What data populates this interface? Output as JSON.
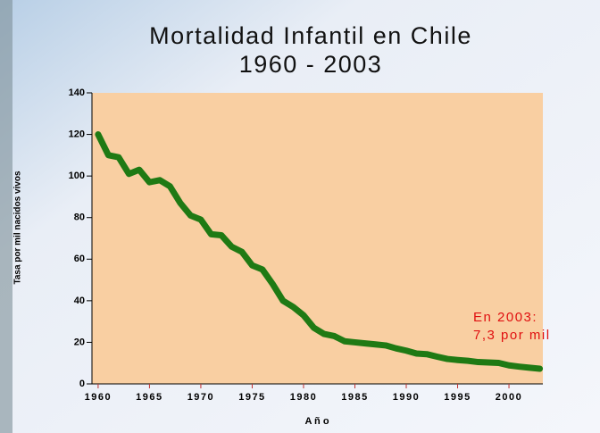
{
  "chart_data": {
    "type": "line",
    "title": [
      "Mortalidad Infantil en Chile",
      "1960 - 2003"
    ],
    "x_label": "A ñ o",
    "y_label": "Tasa por mil nacidos vivos",
    "annotation": [
      "En 2003:",
      "7,3 por mil"
    ],
    "x": [
      1960,
      1961,
      1962,
      1963,
      1964,
      1965,
      1966,
      1967,
      1968,
      1969,
      1970,
      1971,
      1972,
      1973,
      1974,
      1975,
      1976,
      1977,
      1978,
      1979,
      1980,
      1981,
      1982,
      1983,
      1984,
      1985,
      1986,
      1987,
      1988,
      1989,
      1990,
      1991,
      1992,
      1993,
      1994,
      1995,
      1996,
      1997,
      1998,
      1999,
      2000,
      2001,
      2002,
      2003
    ],
    "series": [
      {
        "name": "Tasa",
        "color": "#1f7a14",
        "values": [
          120,
          110,
          109,
          101,
          103,
          97,
          98,
          95,
          87,
          81,
          79,
          72,
          71.5,
          66,
          63.5,
          57,
          55,
          48,
          40,
          37,
          33,
          27,
          24,
          23,
          20.5,
          20,
          19.5,
          19,
          18.5,
          17.1,
          16,
          14.6,
          14.3,
          13.1,
          12,
          11.5,
          11.1,
          10.5,
          10.3,
          10.1,
          8.9,
          8.3,
          7.8,
          7.3
        ]
      }
    ],
    "xlim": [
      1959.4,
      2003.3
    ],
    "xticks": [
      1960,
      1965,
      1970,
      1975,
      1980,
      1985,
      1990,
      1995,
      2000
    ],
    "ylim": [
      0,
      140
    ],
    "yticks": [
      0,
      20,
      40,
      60,
      80,
      100,
      120,
      140
    ],
    "plot_background": "#f9cfa2"
  }
}
